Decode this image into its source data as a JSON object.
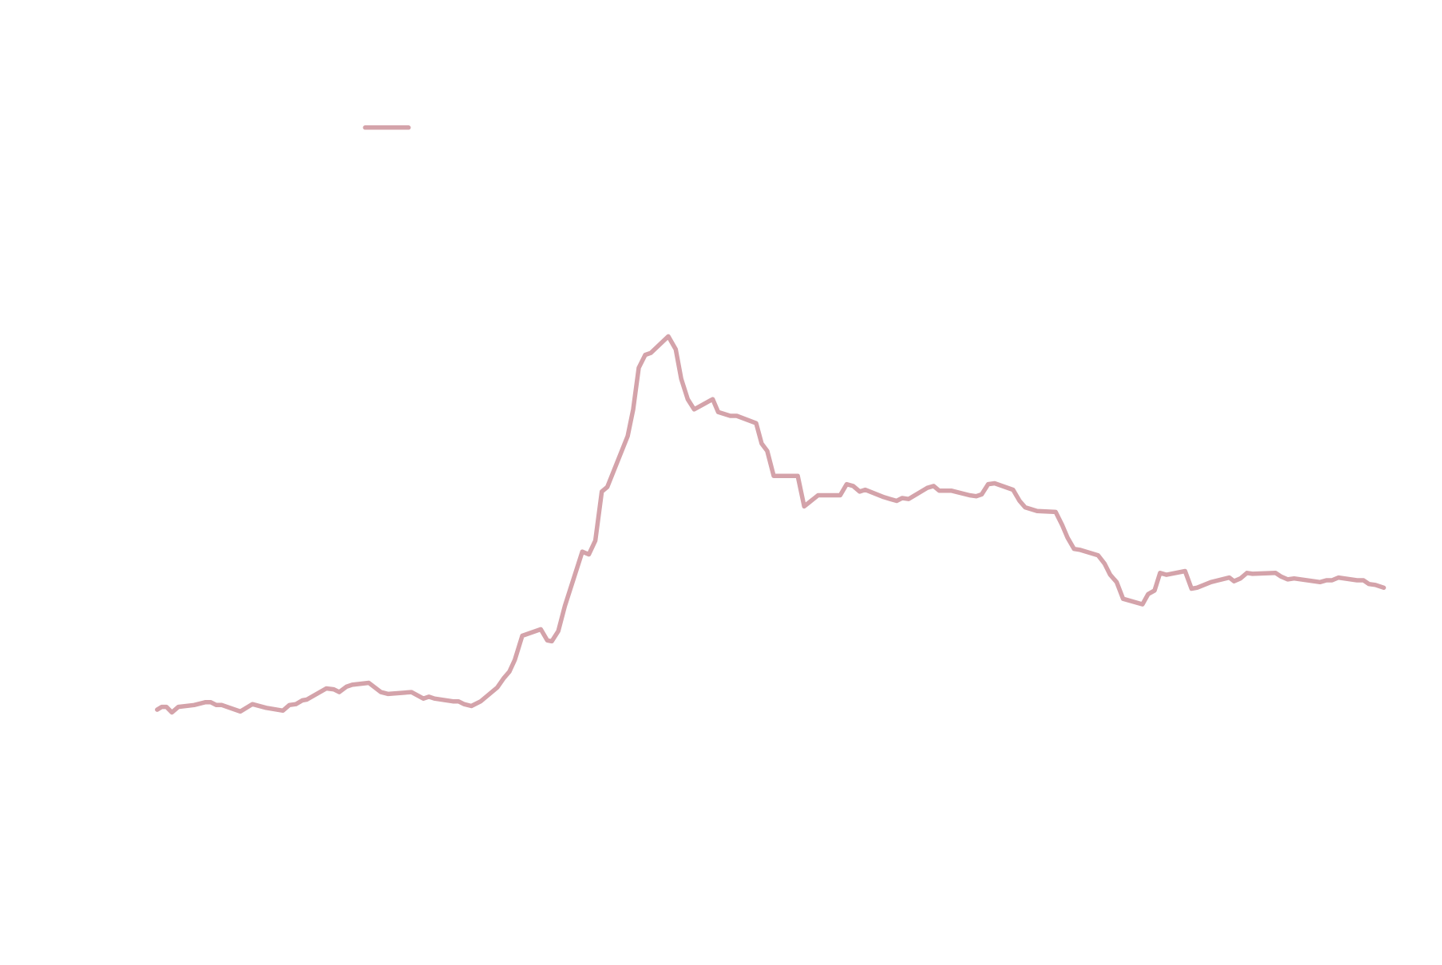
{
  "chart_data": {
    "type": "line",
    "legend": "upper left",
    "xlim": [
      0,
      1327
    ],
    "ylim": [
      0,
      900
    ],
    "x": [
      0,
      5,
      10,
      16,
      23,
      40,
      52,
      58,
      64,
      70,
      90,
      103,
      118,
      136,
      143,
      150,
      157,
      162,
      183,
      191,
      197,
      205,
      211,
      229,
      242,
      250,
      275,
      288,
      294,
      300,
      320,
      326,
      332,
      340,
      350,
      368,
      375,
      381,
      387,
      395,
      415,
      422,
      427,
      434,
      441,
      460,
      467,
      474,
      481,
      487,
      509,
      515,
      521,
      528,
      534,
      553,
      561,
      567,
      574,
      581,
      601,
      607,
      620,
      627,
      648,
      654,
      660,
      667,
      693,
      700,
      715,
      739,
      746,
      753,
      760,
      766,
      786,
      793,
      800,
      806,
      813,
      833,
      840,
      846,
      859,
      879,
      886,
      892,
      899,
      906,
      926,
      933,
      939,
      952,
      972,
      979,
      985,
      992,
      998,
      1018,
      1025,
      1031,
      1038,
      1045,
      1066,
      1072,
      1079,
      1085,
      1092,
      1112,
      1119,
      1125,
      1140,
      1160,
      1165,
      1172,
      1179,
      1185,
      1210,
      1216,
      1223,
      1230,
      1258,
      1265,
      1271,
      1278,
      1298,
      1305,
      1311,
      1318,
      1327
    ],
    "series": [
      {
        "color": "#d4a3aa",
        "values": [
          182,
          185,
          185,
          179,
          185,
          187,
          190,
          190,
          187,
          187,
          180,
          188,
          184,
          181,
          187,
          188,
          192,
          193,
          205,
          204,
          201,
          207,
          209,
          211,
          201,
          199,
          201,
          194,
          196,
          194,
          191,
          191,
          188,
          186,
          191,
          206,
          216,
          223,
          236,
          262,
          269,
          257,
          256,
          267,
          294,
          353,
          350,
          365,
          418,
          423,
          478,
          507,
          552,
          566,
          568,
          586,
          572,
          540,
          518,
          507,
          518,
          504,
          500,
          500,
          492,
          470,
          462,
          435,
          435,
          402,
          414,
          414,
          426,
          424,
          418,
          420,
          412,
          410,
          408,
          411,
          410,
          422,
          424,
          419,
          419,
          414,
          413,
          415,
          426,
          427,
          420,
          408,
          401,
          397,
          396,
          382,
          368,
          356,
          355,
          349,
          340,
          328,
          320,
          302,
          296,
          307,
          311,
          330,
          328,
          332,
          313,
          314,
          320,
          325,
          321,
          324,
          330,
          329,
          330,
          326,
          323,
          324,
          320,
          322,
          322,
          325,
          322,
          322,
          318,
          317,
          314
        ]
      }
    ]
  }
}
